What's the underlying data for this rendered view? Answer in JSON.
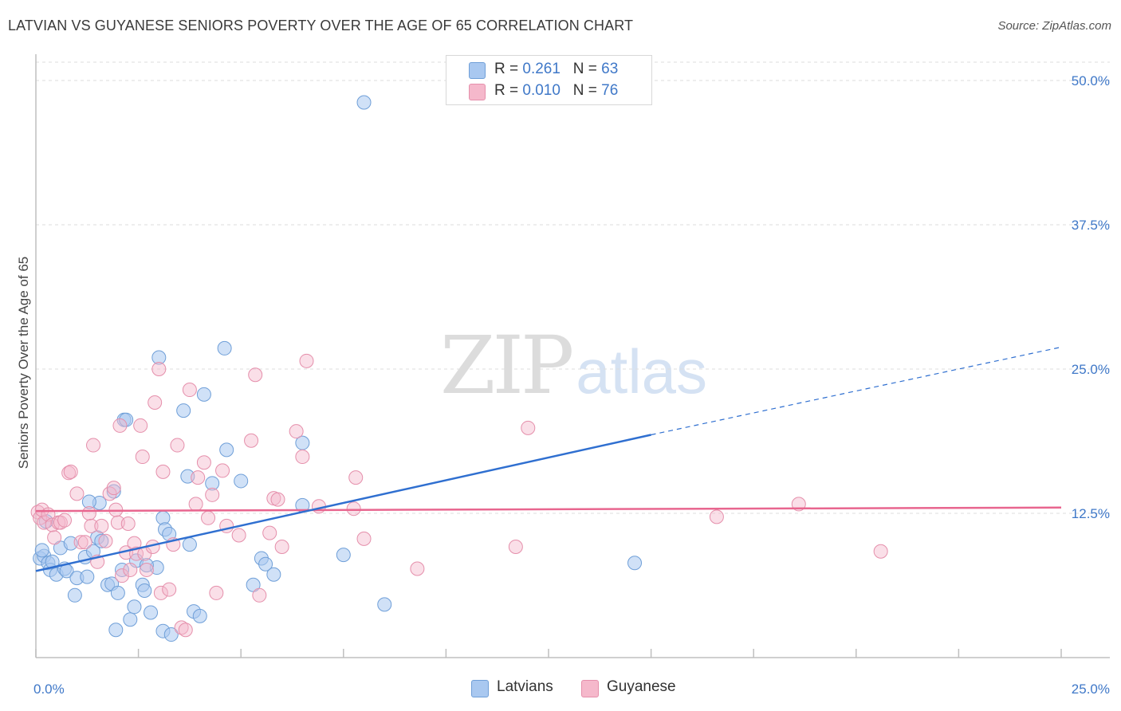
{
  "header": {
    "title": "LATVIAN VS GUYANESE SENIORS POVERTY OVER THE AGE OF 65 CORRELATION CHART",
    "source": "Source: ZipAtlas.com"
  },
  "watermark": {
    "part1": "ZIP",
    "part2": "atlas"
  },
  "legend": {
    "rows": [
      {
        "r_label": "R = ",
        "r_value": "0.261",
        "n_label": "N = ",
        "n_value": "63",
        "color": "#a9c8f0"
      },
      {
        "r_label": "R = ",
        "r_value": "0.010",
        "n_label": "N = ",
        "n_value": "76",
        "color": "#f5b8cb"
      }
    ]
  },
  "bottom_legend": {
    "latvians": "Latvians",
    "guyanese": "Guyanese"
  },
  "colors": {
    "latvian_fill": "#a9c8f0",
    "latvian_stroke": "#6f9fd8",
    "latvian_line": "#2f6fd0",
    "guyanese_fill": "#f5b8cb",
    "guyanese_stroke": "#e58fab",
    "guyanese_line": "#e8668f",
    "tick_text": "#3f78c8",
    "grid": "#dddddd"
  },
  "chart_data": {
    "type": "scatter",
    "title": "LATVIAN VS GUYANESE SENIORS POVERTY OVER THE AGE OF 65 CORRELATION CHART",
    "ylabel": "Seniors Poverty Over the Age of 65",
    "xlim": [
      0,
      25
    ],
    "ylim": [
      0,
      52
    ],
    "x_tick_labels": [
      "0.0%",
      "25.0%"
    ],
    "y_ticks": [
      12.5,
      25.0,
      37.5,
      50.0
    ],
    "y_tick_labels": [
      "12.5%",
      "25.0%",
      "37.5%",
      "50.0%"
    ],
    "grid": true,
    "series": [
      {
        "name": "Latvians",
        "trend": {
          "x": [
            0,
            15.0
          ],
          "y": [
            7.5,
            19.3
          ],
          "dashed_to": [
            25.0,
            26.9
          ]
        },
        "points": [
          [
            0.1,
            8.6
          ],
          [
            0.2,
            8.8
          ],
          [
            0.3,
            8.2
          ],
          [
            0.35,
            7.6
          ],
          [
            0.4,
            8.3
          ],
          [
            0.5,
            7.2
          ],
          [
            0.6,
            9.5
          ],
          [
            0.7,
            7.7
          ],
          [
            0.75,
            7.5
          ],
          [
            0.85,
            9.9
          ],
          [
            1.0,
            6.9
          ],
          [
            0.95,
            5.4
          ],
          [
            1.2,
            8.7
          ],
          [
            1.25,
            7.0
          ],
          [
            1.4,
            9.2
          ],
          [
            1.5,
            10.4
          ],
          [
            1.55,
            13.4
          ],
          [
            1.6,
            10.1
          ],
          [
            1.75,
            6.3
          ],
          [
            1.85,
            6.4
          ],
          [
            1.9,
            14.4
          ],
          [
            1.95,
            2.4
          ],
          [
            2.0,
            5.6
          ],
          [
            2.1,
            7.6
          ],
          [
            2.15,
            20.6
          ],
          [
            2.2,
            20.6
          ],
          [
            2.3,
            3.3
          ],
          [
            2.4,
            4.4
          ],
          [
            2.45,
            8.4
          ],
          [
            2.6,
            6.3
          ],
          [
            2.65,
            5.8
          ],
          [
            2.8,
            3.9
          ],
          [
            2.95,
            7.8
          ],
          [
            3.0,
            26.0
          ],
          [
            3.1,
            2.3
          ],
          [
            3.1,
            12.1
          ],
          [
            3.15,
            11.1
          ],
          [
            3.25,
            10.7
          ],
          [
            3.3,
            2.0
          ],
          [
            3.6,
            21.4
          ],
          [
            3.7,
            15.7
          ],
          [
            3.75,
            9.8
          ],
          [
            3.85,
            4.0
          ],
          [
            4.0,
            3.6
          ],
          [
            4.1,
            22.8
          ],
          [
            4.3,
            15.1
          ],
          [
            4.6,
            26.8
          ],
          [
            4.65,
            18.0
          ],
          [
            5.0,
            15.3
          ],
          [
            5.3,
            6.3
          ],
          [
            5.5,
            8.6
          ],
          [
            5.6,
            8.1
          ],
          [
            5.8,
            7.2
          ],
          [
            6.5,
            18.6
          ],
          [
            6.5,
            13.2
          ],
          [
            7.5,
            8.9
          ],
          [
            8.0,
            48.1
          ],
          [
            8.5,
            4.6
          ],
          [
            14.6,
            8.2
          ],
          [
            0.15,
            9.3
          ],
          [
            0.25,
            11.8
          ],
          [
            1.3,
            13.5
          ],
          [
            2.7,
            8.0
          ]
        ]
      },
      {
        "name": "Guyanese",
        "trend": {
          "x": [
            0,
            25.0
          ],
          "y": [
            12.7,
            13.0
          ]
        },
        "points": [
          [
            0.05,
            12.6
          ],
          [
            0.1,
            12.1
          ],
          [
            0.15,
            12.8
          ],
          [
            0.2,
            11.7
          ],
          [
            0.3,
            12.4
          ],
          [
            0.4,
            11.5
          ],
          [
            0.45,
            10.4
          ],
          [
            0.55,
            11.7
          ],
          [
            0.6,
            11.7
          ],
          [
            0.7,
            11.9
          ],
          [
            0.8,
            16.0
          ],
          [
            0.85,
            16.1
          ],
          [
            1.0,
            14.2
          ],
          [
            1.1,
            10.0
          ],
          [
            1.2,
            10.0
          ],
          [
            1.3,
            12.5
          ],
          [
            1.35,
            11.4
          ],
          [
            1.4,
            18.4
          ],
          [
            1.5,
            8.3
          ],
          [
            1.6,
            11.4
          ],
          [
            1.7,
            10.1
          ],
          [
            1.8,
            14.2
          ],
          [
            1.9,
            14.7
          ],
          [
            1.95,
            12.8
          ],
          [
            2.0,
            11.7
          ],
          [
            2.05,
            20.1
          ],
          [
            2.1,
            7.1
          ],
          [
            2.2,
            9.1
          ],
          [
            2.25,
            11.6
          ],
          [
            2.3,
            7.6
          ],
          [
            2.4,
            9.9
          ],
          [
            2.45,
            9.0
          ],
          [
            2.55,
            20.1
          ],
          [
            2.6,
            17.4
          ],
          [
            2.65,
            9.0
          ],
          [
            2.7,
            7.6
          ],
          [
            2.85,
            9.6
          ],
          [
            2.9,
            22.1
          ],
          [
            3.0,
            25.0
          ],
          [
            3.05,
            5.6
          ],
          [
            3.1,
            16.1
          ],
          [
            3.25,
            5.9
          ],
          [
            3.35,
            9.8
          ],
          [
            3.45,
            18.4
          ],
          [
            3.55,
            2.6
          ],
          [
            3.65,
            2.4
          ],
          [
            3.75,
            23.2
          ],
          [
            3.9,
            13.3
          ],
          [
            3.95,
            15.6
          ],
          [
            4.1,
            16.9
          ],
          [
            4.2,
            12.1
          ],
          [
            4.3,
            14.1
          ],
          [
            4.4,
            5.6
          ],
          [
            4.55,
            16.2
          ],
          [
            4.65,
            11.4
          ],
          [
            4.95,
            10.6
          ],
          [
            5.25,
            18.8
          ],
          [
            5.35,
            24.5
          ],
          [
            5.45,
            5.4
          ],
          [
            5.7,
            10.8
          ],
          [
            5.8,
            13.8
          ],
          [
            5.9,
            13.7
          ],
          [
            6.0,
            9.6
          ],
          [
            6.35,
            19.6
          ],
          [
            6.5,
            17.4
          ],
          [
            6.6,
            25.7
          ],
          [
            6.9,
            13.1
          ],
          [
            7.75,
            12.9
          ],
          [
            7.8,
            15.6
          ],
          [
            8.0,
            10.3
          ],
          [
            9.3,
            7.7
          ],
          [
            11.7,
            9.6
          ],
          [
            12.0,
            19.9
          ],
          [
            16.6,
            12.2
          ],
          [
            18.6,
            13.3
          ],
          [
            20.6,
            9.2
          ]
        ]
      }
    ]
  }
}
